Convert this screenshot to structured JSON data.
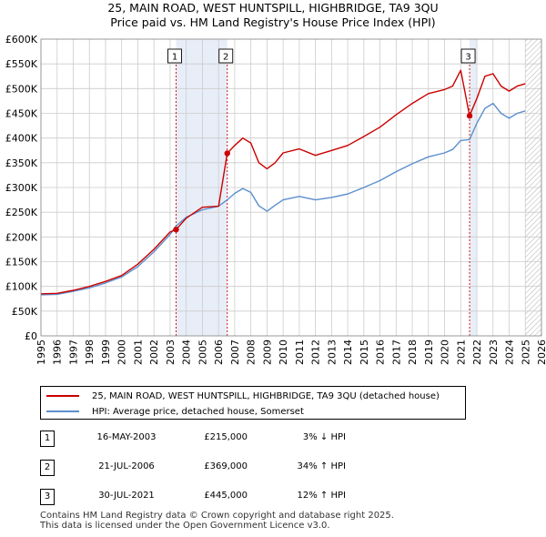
{
  "title_line1": "25, MAIN ROAD, WEST HUNTSPILL, HIGHBRIDGE, TA9 3QU",
  "title_line2": "Price paid vs. HM Land Registry's House Price Index (HPI)",
  "colors": {
    "property": "#cc0000",
    "hpi": "#5b8fcc",
    "shade": "#e8eef8",
    "grid": "#cccccc"
  },
  "chart_data": {
    "type": "line",
    "title": "25, MAIN ROAD, WEST HUNTSPILL, HIGHBRIDGE, TA9 3QU — Price paid vs. HM Land Registry's House Price Index (HPI)",
    "xlabel": "",
    "ylabel": "",
    "xlim": [
      1995,
      2026
    ],
    "ylim": [
      0,
      600000
    ],
    "x_ticks": [
      1995,
      1996,
      1997,
      1998,
      1999,
      2000,
      2001,
      2002,
      2003,
      2004,
      2005,
      2006,
      2007,
      2008,
      2009,
      2010,
      2011,
      2012,
      2013,
      2014,
      2015,
      2016,
      2017,
      2018,
      2019,
      2020,
      2021,
      2022,
      2023,
      2024,
      2025,
      2026
    ],
    "y_ticks": [
      0,
      50000,
      100000,
      150000,
      200000,
      250000,
      300000,
      350000,
      400000,
      450000,
      500000,
      550000,
      600000
    ],
    "y_tick_labels": [
      "£0",
      "£50K",
      "£100K",
      "£150K",
      "£200K",
      "£250K",
      "£300K",
      "£350K",
      "£400K",
      "£450K",
      "£500K",
      "£550K",
      "£600K"
    ],
    "grid": true,
    "series": [
      {
        "name": "25, MAIN ROAD, WEST HUNTSPILL, HIGHBRIDGE, TA9 3QU (detached house)",
        "x": [
          1995.0,
          1996.0,
          1997.0,
          1998.0,
          1999.0,
          2000.0,
          2001.0,
          2002.0,
          2003.0,
          2003.37,
          2004.0,
          2005.0,
          2006.0,
          2006.54,
          2007.0,
          2007.5,
          2008.0,
          2008.5,
          2009.0,
          2009.5,
          2010.0,
          2011.0,
          2012.0,
          2013.0,
          2014.0,
          2015.0,
          2016.0,
          2017.0,
          2018.0,
          2019.0,
          2020.0,
          2020.5,
          2021.0,
          2021.55,
          2022.0,
          2022.5,
          2023.0,
          2023.5,
          2024.0,
          2024.5,
          2025.0
        ],
        "y": [
          85000,
          86000,
          92000,
          100000,
          110000,
          122000,
          145000,
          175000,
          210000,
          215000,
          238000,
          260000,
          262000,
          369000,
          385000,
          400000,
          390000,
          350000,
          338000,
          350000,
          370000,
          378000,
          365000,
          375000,
          385000,
          403000,
          422000,
          447000,
          470000,
          490000,
          498000,
          505000,
          537000,
          445000,
          480000,
          525000,
          530000,
          505000,
          495000,
          505000,
          510000
        ]
      },
      {
        "name": "HPI: Average price, detached house, Somerset",
        "x": [
          1995.0,
          1996.0,
          1997.0,
          1998.0,
          1999.0,
          2000.0,
          2001.0,
          2002.0,
          2003.0,
          2003.37,
          2004.0,
          2005.0,
          2006.0,
          2006.54,
          2007.0,
          2007.5,
          2008.0,
          2008.5,
          2009.0,
          2009.5,
          2010.0,
          2011.0,
          2012.0,
          2013.0,
          2014.0,
          2015.0,
          2016.0,
          2017.0,
          2018.0,
          2019.0,
          2020.0,
          2020.5,
          2021.0,
          2021.55,
          2022.0,
          2022.5,
          2023.0,
          2023.5,
          2024.0,
          2024.5,
          2025.0
        ],
        "y": [
          83000,
          84000,
          90000,
          97000,
          107000,
          119000,
          140000,
          170000,
          205000,
          222000,
          240000,
          255000,
          262000,
          275000,
          288000,
          298000,
          290000,
          263000,
          252000,
          264000,
          275000,
          282000,
          275000,
          280000,
          287000,
          300000,
          314000,
          332000,
          348000,
          362000,
          370000,
          377000,
          395000,
          397000,
          430000,
          460000,
          470000,
          450000,
          440000,
          450000,
          455000
        ]
      }
    ],
    "annotations": [
      {
        "label": "1",
        "x": 2003.37,
        "y": 215000
      },
      {
        "label": "2",
        "x": 2006.54,
        "y": 369000
      },
      {
        "label": "3",
        "x": 2021.55,
        "y": 445000
      }
    ],
    "shaded_ranges": [
      [
        2003.37,
        2006.54
      ],
      [
        2021.55,
        2022.0
      ]
    ],
    "hatched_range": [
      2025.0,
      2026.0
    ]
  },
  "legend": {
    "property_label": "25, MAIN ROAD, WEST HUNTSPILL, HIGHBRIDGE, TA9 3QU (detached house)",
    "hpi_label": "HPI: Average price, detached house, Somerset"
  },
  "sales": [
    {
      "num": "1",
      "date": "16-MAY-2003",
      "price": "£215,000",
      "hpi": "3% ↓ HPI"
    },
    {
      "num": "2",
      "date": "21-JUL-2006",
      "price": "£369,000",
      "hpi": "34% ↑ HPI"
    },
    {
      "num": "3",
      "date": "30-JUL-2021",
      "price": "£445,000",
      "hpi": "12% ↑ HPI"
    }
  ],
  "footer_line1": "Contains HM Land Registry data © Crown copyright and database right 2025.",
  "footer_line2": "This data is licensed under the Open Government Licence v3.0."
}
